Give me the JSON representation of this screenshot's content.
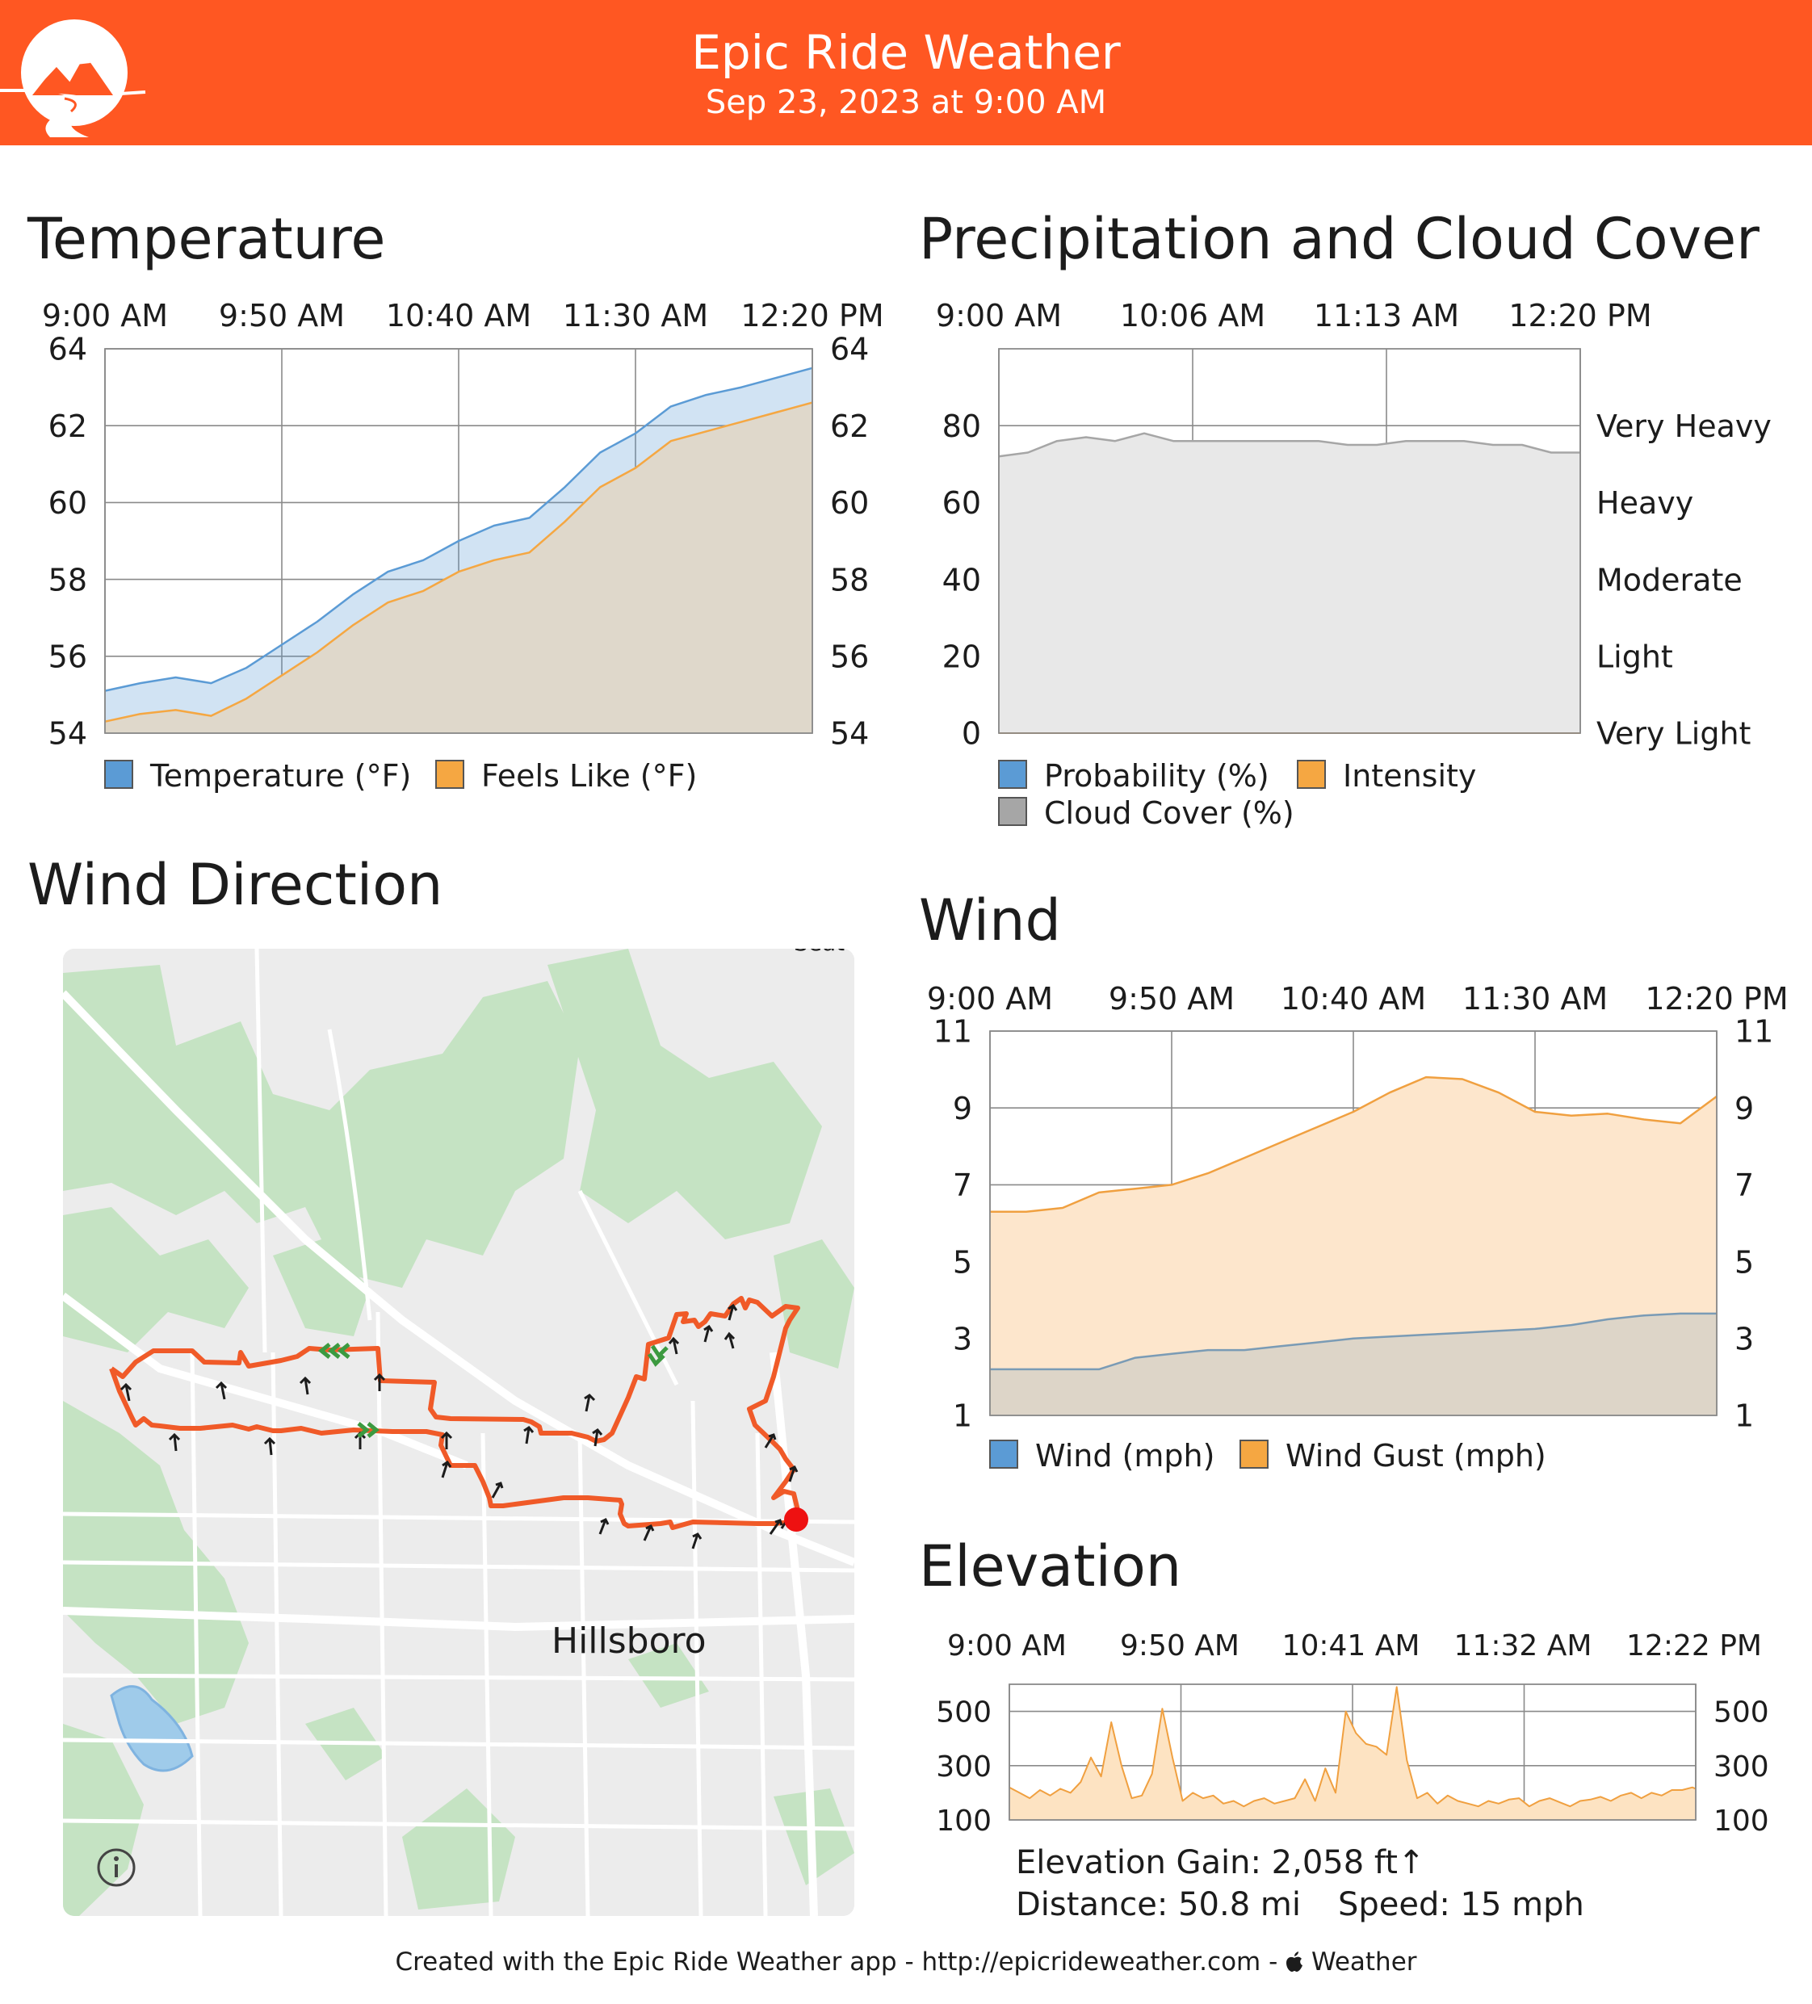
{
  "header": {
    "title": "Epic Ride Weather",
    "subtitle": "Sep 23, 2023 at 9:00 AM"
  },
  "sections": {
    "temperature": "Temperature",
    "precipitation": "Precipitation and Cloud Cover",
    "wind_direction": "Wind Direction",
    "wind": "Wind",
    "elevation": "Elevation"
  },
  "map": {
    "place_label": "Hillsboro",
    "partial_label": "Seat",
    "info_icon": "info-icon"
  },
  "elevation_info": {
    "gain": "Elevation Gain: 2,058 ft↑",
    "distance": "Distance: 50.8 mi",
    "speed": "Speed: 15 mph"
  },
  "footer": {
    "text_before_icon": "Created with the Epic Ride Weather app - http://epicrideweather.com - ",
    "icon": "apple-icon",
    "text_after_icon": "Weather"
  },
  "colors": {
    "header": "#ff5722",
    "route": "#f05a28",
    "temperature": "#5b9bd5",
    "feels_like": "#f5a742",
    "cloud": "#a6a6a6",
    "wind": "#7a9bb5",
    "gust": "#f0a040",
    "elevation": "#f0a040"
  },
  "chart_data": [
    {
      "id": "temperature",
      "type": "area",
      "x_ticks": [
        "9:00 AM",
        "9:50 AM",
        "10:40 AM",
        "11:30 AM",
        "12:20 PM"
      ],
      "x": [
        0,
        10,
        20,
        30,
        40,
        50,
        60,
        70,
        80,
        90,
        100,
        110,
        120,
        130,
        140,
        150,
        160,
        170,
        180,
        190,
        200
      ],
      "ylim": [
        54,
        64
      ],
      "y_ticks": [
        54,
        56,
        58,
        60,
        62,
        64
      ],
      "legend": [
        "Temperature (°F)",
        "Feels Like (°F)"
      ],
      "series": [
        {
          "name": "Temperature (°F)",
          "values": [
            55.1,
            55.3,
            55.45,
            55.3,
            55.7,
            56.3,
            56.9,
            57.6,
            58.2,
            58.5,
            59.0,
            59.4,
            59.6,
            60.4,
            61.3,
            61.8,
            62.5,
            62.8,
            63.0,
            63.25,
            63.5
          ]
        },
        {
          "name": "Feels Like (°F)",
          "values": [
            54.3,
            54.5,
            54.6,
            54.45,
            54.9,
            55.5,
            56.1,
            56.8,
            57.4,
            57.7,
            58.2,
            58.5,
            58.7,
            59.5,
            60.4,
            60.9,
            61.6,
            61.85,
            62.1,
            62.35,
            62.6
          ]
        }
      ]
    },
    {
      "id": "precipitation",
      "type": "area",
      "x_ticks": [
        "9:00 AM",
        "10:06 AM",
        "11:13 AM",
        "12:20 PM"
      ],
      "x": [
        0,
        10,
        20,
        30,
        40,
        50,
        60,
        70,
        80,
        90,
        100,
        110,
        120,
        130,
        140,
        150,
        160,
        170,
        180,
        190,
        200
      ],
      "ylim": [
        0,
        100
      ],
      "y_ticks": [
        0,
        20,
        40,
        60,
        80
      ],
      "right_labels": [
        "Very Light",
        "Light",
        "Moderate",
        "Heavy",
        "Very Heavy"
      ],
      "legend": [
        "Probability (%)",
        "Intensity",
        "Cloud Cover (%)"
      ],
      "series": [
        {
          "name": "Cloud Cover (%)",
          "values": [
            72,
            73,
            76,
            77,
            76,
            78,
            76,
            76,
            76,
            76,
            76,
            76,
            75,
            75,
            76,
            76,
            76,
            75,
            75,
            73,
            73
          ]
        },
        {
          "name": "Probability (%)",
          "values": [
            0,
            0,
            0,
            0,
            0,
            0,
            0,
            0,
            0,
            0,
            0,
            0,
            0,
            0,
            0,
            0,
            0,
            0,
            0,
            0,
            0
          ]
        },
        {
          "name": "Intensity",
          "values": [
            0,
            0,
            0,
            0,
            0,
            0,
            0,
            0,
            0,
            0,
            0,
            0,
            0,
            0,
            0,
            0,
            0,
            0,
            0,
            0,
            0
          ]
        }
      ]
    },
    {
      "id": "wind",
      "type": "area",
      "x_ticks": [
        "9:00 AM",
        "9:50 AM",
        "10:40 AM",
        "11:30 AM",
        "12:20 PM"
      ],
      "x": [
        0,
        10,
        20,
        30,
        40,
        50,
        60,
        70,
        80,
        90,
        100,
        110,
        120,
        130,
        140,
        150,
        160,
        170,
        180,
        190,
        200
      ],
      "ylim": [
        1,
        11
      ],
      "y_ticks": [
        1,
        3,
        5,
        7,
        9,
        11
      ],
      "legend": [
        "Wind (mph)",
        "Wind Gust (mph)"
      ],
      "series": [
        {
          "name": "Wind (mph)",
          "values": [
            2.2,
            2.2,
            2.2,
            2.2,
            2.5,
            2.6,
            2.7,
            2.7,
            2.8,
            2.9,
            3.0,
            3.05,
            3.1,
            3.15,
            3.2,
            3.25,
            3.35,
            3.5,
            3.6,
            3.65,
            3.65
          ]
        },
        {
          "name": "Wind Gust (mph)",
          "values": [
            6.3,
            6.3,
            6.4,
            6.8,
            6.9,
            7.0,
            7.3,
            7.7,
            8.1,
            8.5,
            8.9,
            9.4,
            9.8,
            9.75,
            9.4,
            8.9,
            8.8,
            8.85,
            8.7,
            8.6,
            9.3
          ]
        }
      ]
    },
    {
      "id": "elevation",
      "type": "area",
      "x_ticks": [
        "9:00 AM",
        "9:50 AM",
        "10:41 AM",
        "11:32 AM",
        "12:22 PM"
      ],
      "x": [
        0,
        3,
        6,
        9,
        12,
        15,
        18,
        21,
        24,
        27,
        30,
        33,
        36,
        39,
        42,
        45,
        48,
        51,
        54,
        57,
        60,
        63,
        66,
        69,
        72,
        75,
        78,
        81,
        84,
        87,
        90,
        93,
        96,
        99,
        102,
        105,
        108,
        111,
        114,
        117,
        120,
        123,
        126,
        129,
        132,
        135,
        138,
        141,
        144,
        147,
        150,
        153,
        156,
        159,
        162,
        165,
        168,
        171,
        174,
        177,
        180,
        183,
        186,
        189,
        192,
        195,
        198,
        201,
        202
      ],
      "ylim": [
        100,
        600
      ],
      "y_ticks": [
        100,
        300,
        500
      ],
      "legend": [],
      "series": [
        {
          "name": "Elevation (ft)",
          "values": [
            220,
            200,
            180,
            210,
            190,
            215,
            200,
            240,
            330,
            260,
            460,
            300,
            180,
            190,
            270,
            510,
            330,
            170,
            200,
            180,
            190,
            160,
            170,
            150,
            170,
            180,
            160,
            170,
            180,
            250,
            170,
            290,
            200,
            500,
            420,
            380,
            370,
            340,
            590,
            320,
            180,
            200,
            160,
            190,
            170,
            160,
            150,
            170,
            160,
            175,
            180,
            150,
            170,
            180,
            165,
            150,
            170,
            175,
            185,
            170,
            190,
            200,
            180,
            200,
            190,
            210,
            210,
            220,
            215
          ]
        }
      ]
    }
  ]
}
